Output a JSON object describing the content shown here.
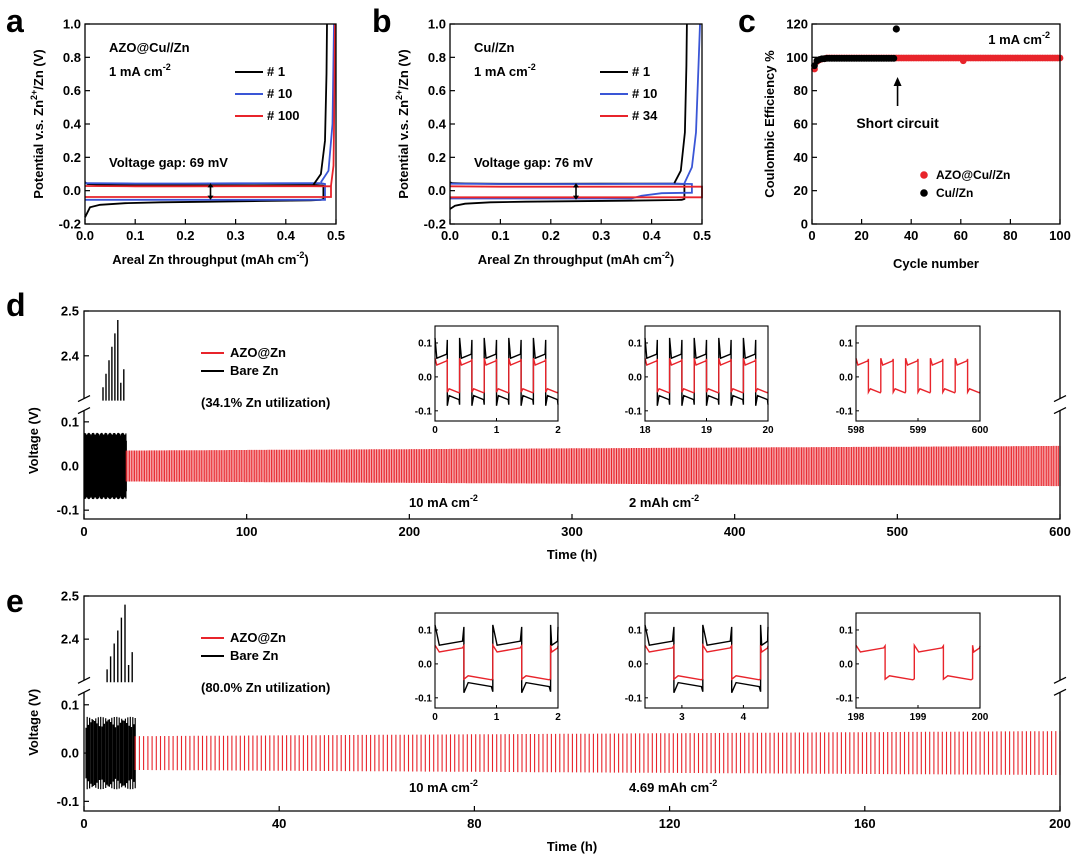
{
  "colors": {
    "black": "#000000",
    "blue": "#3a56d6",
    "red": "#e8242b"
  },
  "chart_data": [
    {
      "id": "a",
      "type": "line",
      "panel_label": "a",
      "title": "AZO@Cu//Zn",
      "condition": "1 mA cm",
      "condition_sup": "-2",
      "annotation": "Voltage gap: 69 mV",
      "xlabel": "Areal Zn throughput (mAh cm",
      "xlabel_sup": "-2",
      "xlabel_end": ")",
      "ylabel": "Potential v.s. Zn",
      "ylabel_sup": "2+",
      "ylabel_end": "/Zn (V)",
      "xlim": [
        0,
        0.5
      ],
      "ylim": [
        -0.2,
        1.0
      ],
      "xticks": [
        "0.0",
        "0.1",
        "0.2",
        "0.3",
        "0.4",
        "0.5"
      ],
      "yticks": [
        "-0.2",
        "0.0",
        "0.2",
        "0.4",
        "0.6",
        "0.8",
        "1.0"
      ],
      "series": [
        {
          "name": "# 1",
          "color": "#000000",
          "x": [
            0,
            0.01,
            0.03,
            0.08,
            0.15,
            0.25,
            0.35,
            0.45,
            0.47,
            0.475,
            0.475,
            0.46,
            0.43,
            0.38,
            0.3,
            0.2,
            0.1,
            0.03,
            0.005,
            0
          ],
          "y": [
            -0.16,
            -0.1,
            -0.085,
            -0.075,
            -0.07,
            -0.066,
            -0.062,
            -0.058,
            -0.055,
            -0.05,
            0.03,
            0.034,
            0.034,
            0.033,
            0.032,
            0.032,
            0.032,
            0.035,
            0.04,
            0.05
          ]
        },
        {
          "name": "# 10",
          "color": "#3a56d6",
          "x": [
            0,
            0.1,
            0.2,
            0.3,
            0.4,
            0.478,
            0.478,
            0.47,
            0.45,
            0.3,
            0.2,
            0.1,
            0
          ],
          "y": [
            -0.055,
            -0.055,
            -0.055,
            -0.055,
            -0.055,
            -0.055,
            0.04,
            0.045,
            0.045,
            0.044,
            0.043,
            0.043,
            0.045
          ]
        },
        {
          "name": "# 100",
          "color": "#e8242b",
          "x": [
            0,
            0.1,
            0.2,
            0.3,
            0.4,
            0.49,
            0.49,
            0.45,
            0.3,
            0.2,
            0.1,
            0
          ],
          "y": [
            -0.038,
            -0.038,
            -0.038,
            -0.038,
            -0.038,
            -0.038,
            0.026,
            0.027,
            0.027,
            0.026,
            0.026,
            0.028
          ]
        }
      ],
      "curves": [
        {
          "color": "#000000",
          "x": [
            0.455,
            0.47,
            0.478,
            0.481,
            0.482
          ],
          "y": [
            0.035,
            0.1,
            0.3,
            0.7,
            1.0
          ]
        },
        {
          "color": "#3a56d6",
          "x": [
            0.47,
            0.485,
            0.493,
            0.496
          ],
          "y": [
            0.05,
            0.12,
            0.4,
            1.0
          ]
        },
        {
          "color": "#e8242b",
          "x": [
            0.49,
            0.495,
            0.497,
            0.498
          ],
          "y": [
            0.03,
            0.15,
            0.6,
            1.0
          ]
        }
      ]
    },
    {
      "id": "b",
      "type": "line",
      "panel_label": "b",
      "title": "Cu//Zn",
      "condition": "1 mA cm",
      "condition_sup": "-2",
      "annotation": "Voltage gap: 76 mV",
      "xlabel": "Areal Zn throughput (mAh cm",
      "xlabel_sup": "-2",
      "xlabel_end": ")",
      "ylabel": "Potential v.s. Zn",
      "ylabel_sup": "2+",
      "ylabel_end": "/Zn (V)",
      "xlim": [
        0,
        0.5
      ],
      "ylim": [
        -0.2,
        1.0
      ],
      "xticks": [
        "0.0",
        "0.1",
        "0.2",
        "0.3",
        "0.4",
        "0.5"
      ],
      "yticks": [
        "-0.2",
        "0.0",
        "0.2",
        "0.4",
        "0.6",
        "0.8",
        "1.0"
      ],
      "series": [
        {
          "name": "# 1",
          "color": "#000000",
          "x": [
            0,
            0.01,
            0.03,
            0.08,
            0.15,
            0.25,
            0.35,
            0.45,
            0.46,
            0.465,
            0.465,
            0.44,
            0.3,
            0.2,
            0.1,
            0.03,
            0.005,
            0
          ],
          "y": [
            -0.11,
            -0.09,
            -0.078,
            -0.07,
            -0.066,
            -0.063,
            -0.06,
            -0.056,
            -0.055,
            -0.05,
            0.04,
            0.042,
            0.042,
            0.041,
            0.041,
            0.043,
            0.045,
            0.05
          ]
        },
        {
          "name": "# 10",
          "color": "#3a56d6",
          "x": [
            0,
            0.1,
            0.2,
            0.3,
            0.36,
            0.38,
            0.42,
            0.48,
            0.48,
            0.45,
            0.3,
            0.2,
            0.1,
            0
          ],
          "y": [
            -0.047,
            -0.047,
            -0.047,
            -0.047,
            -0.047,
            -0.03,
            -0.015,
            -0.012,
            0.04,
            0.042,
            0.04,
            0.04,
            0.04,
            0.042
          ]
        },
        {
          "name": "# 34",
          "color": "#e8242b",
          "x": [
            0,
            0.1,
            0.2,
            0.3,
            0.4,
            0.5,
            0.5,
            0.4,
            0.3,
            0.2,
            0.1,
            0
          ],
          "y": [
            -0.04,
            -0.04,
            -0.04,
            -0.04,
            -0.04,
            -0.04,
            0.024,
            0.024,
            0.024,
            0.024,
            0.024,
            0.026
          ]
        }
      ],
      "curves": [
        {
          "color": "#000000",
          "x": [
            0.445,
            0.458,
            0.466,
            0.469,
            0.47
          ],
          "y": [
            0.045,
            0.12,
            0.35,
            0.75,
            1.0
          ]
        },
        {
          "color": "#3a56d6",
          "x": [
            0.465,
            0.48,
            0.488,
            0.493,
            0.496
          ],
          "y": [
            0.045,
            0.14,
            0.35,
            0.75,
            1.0
          ]
        }
      ]
    },
    {
      "id": "c",
      "type": "scatter",
      "panel_label": "c",
      "condition": "1 mA cm",
      "condition_sup": "-2",
      "annotation": "Short circuit",
      "xlabel": "Cycle number",
      "ylabel": "Coulombic Efficiency %",
      "xlim": [
        0,
        100
      ],
      "ylim": [
        0,
        120
      ],
      "xticks": [
        "0",
        "20",
        "40",
        "60",
        "80",
        "100"
      ],
      "yticks": [
        "0",
        "20",
        "40",
        "60",
        "80",
        "100",
        "120"
      ],
      "short_circuit_cycle": 34,
      "reference_line": 100,
      "series": [
        {
          "name": "AZO@Cu//Zn",
          "color": "#e8242b",
          "first_values": [
            93,
            97.5,
            98.5,
            99,
            99.2
          ],
          "plateau": 99.6,
          "n": 100,
          "outliers": [
            {
              "x": 61,
              "y": 98
            }
          ]
        },
        {
          "name": "Cu//Zn",
          "color": "#000000",
          "first_values": [
            95,
            98,
            98.7,
            99.1,
            99.2
          ],
          "plateau": 99.4,
          "n": 33,
          "outliers": [
            {
              "x": 34,
              "y": 117
            }
          ]
        }
      ]
    },
    {
      "id": "d",
      "type": "line",
      "panel_label": "d",
      "xlabel": "Time (h)",
      "ylabel": "Voltage (V)",
      "xlim": [
        0,
        600
      ],
      "xticks": [
        "0",
        "100",
        "200",
        "300",
        "400",
        "500",
        "600"
      ],
      "yticks_top": [
        "2.4",
        "2.5"
      ],
      "yticks_bottom": [
        "-0.1",
        "0.0",
        "0.1"
      ],
      "utilization": "(34.1% Zn utilization)",
      "current": "10 mA cm",
      "current_sup": "-2",
      "capacity": "2 mAh cm",
      "capacity_sup": "-2",
      "short_circuit_time": 26,
      "series": [
        {
          "name": "AZO@Zn",
          "color": "#e8242b",
          "amplitude": 0.035
        },
        {
          "name": "Bare Zn",
          "color": "#000000",
          "amplitude": 0.075
        }
      ],
      "insets": [
        {
          "xlim": [
            0,
            2
          ],
          "xticks": [
            "0",
            "1",
            "2"
          ],
          "yticks": [
            "-0.1",
            "0.0",
            "0.1"
          ],
          "period": 0.4,
          "show_black": true
        },
        {
          "xlim": [
            18,
            20
          ],
          "xticks": [
            "18",
            "19",
            "20"
          ],
          "yticks": [
            "-0.1",
            "0.0",
            "0.1"
          ],
          "period": 0.4,
          "show_black": true
        },
        {
          "xlim": [
            598,
            600
          ],
          "xticks": [
            "598",
            "599",
            "600"
          ],
          "yticks": [
            "-0.1",
            "0.0",
            "0.1"
          ],
          "period": 0.4,
          "show_black": false
        }
      ]
    },
    {
      "id": "e",
      "type": "line",
      "panel_label": "e",
      "xlabel": "Time (h)",
      "ylabel": "Voltage (V)",
      "xlim": [
        0,
        200
      ],
      "xticks": [
        "0",
        "40",
        "80",
        "120",
        "160",
        "200"
      ],
      "yticks_top": [
        "2.4",
        "2.5"
      ],
      "yticks_bottom": [
        "-0.1",
        "0.0",
        "0.1"
      ],
      "utilization": "(80.0% Zn utilization)",
      "current": "10 mA cm",
      "current_sup": "-2",
      "capacity": "4.69 mAh cm",
      "capacity_sup": "-2",
      "short_circuit_time": 10.5,
      "series": [
        {
          "name": "AZO@Zn",
          "color": "#e8242b",
          "amplitude": 0.035
        },
        {
          "name": "Bare Zn",
          "color": "#000000",
          "amplitude": 0.075
        }
      ],
      "insets": [
        {
          "xlim": [
            0,
            2
          ],
          "xticks": [
            "0",
            "1",
            "2"
          ],
          "yticks": [
            "-0.1",
            "0.0",
            "0.1"
          ],
          "period": 0.94,
          "show_black": true
        },
        {
          "xlim": [
            2.4,
            4.4
          ],
          "xticks": [
            "3",
            "4"
          ],
          "xtick_values": [
            3,
            4
          ],
          "yticks": [
            "-0.1",
            "0.0",
            "0.1"
          ],
          "period": 0.94,
          "show_black": true
        },
        {
          "xlim": [
            198,
            200
          ],
          "xticks": [
            "198",
            "199",
            "200"
          ],
          "yticks": [
            "-0.1",
            "0.0",
            "0.1"
          ],
          "period": 0.94,
          "show_black": false
        }
      ]
    }
  ]
}
